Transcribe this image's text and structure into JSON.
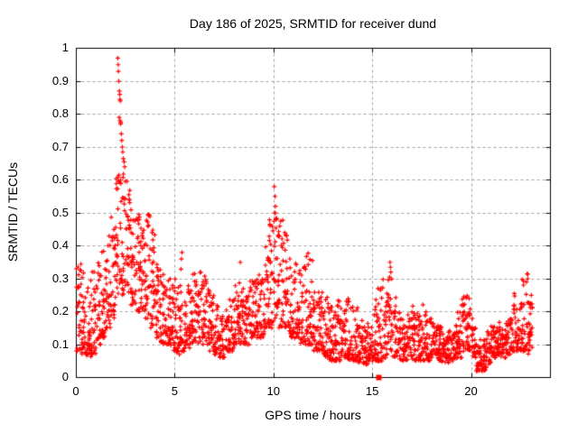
{
  "window": {
    "background": "#ffffff"
  },
  "chart_data": {
    "type": "scatter",
    "title": "Day 186 of 2025, SRMTID for receiver dund",
    "xlabel": "GPS time / hours",
    "ylabel": "SRMTID / TECUs",
    "xlim": [
      0,
      24
    ],
    "ylim": [
      0,
      1
    ],
    "xticks": [
      0,
      5,
      10,
      15,
      20
    ],
    "yticks": [
      0,
      0.1,
      0.2,
      0.3,
      0.4,
      0.5,
      0.6,
      0.7,
      0.8,
      0.9,
      1
    ],
    "grid": true,
    "grid_style": "dashed",
    "grid_color": "#a0a0a0",
    "axis_color": "#000000",
    "legend": "none",
    "series_name": "SRMTID",
    "marker": "plus",
    "marker_color": "#ff0000",
    "marker_size_px": 5,
    "seed": 186,
    "envelope_bins": [
      [
        0.0,
        0.25,
        0.08,
        0.35,
        28,
        1.5
      ],
      [
        0.25,
        0.5,
        0.07,
        0.32,
        28,
        1.5
      ],
      [
        0.5,
        0.75,
        0.06,
        0.3,
        28,
        1.5
      ],
      [
        0.75,
        1.0,
        0.07,
        0.33,
        28,
        1.5
      ],
      [
        1.0,
        1.25,
        0.1,
        0.38,
        28,
        1.5
      ],
      [
        1.25,
        1.5,
        0.12,
        0.42,
        28,
        1.5
      ],
      [
        1.5,
        1.75,
        0.15,
        0.43,
        28,
        1.4
      ],
      [
        1.75,
        2.0,
        0.18,
        0.5,
        28,
        1.4
      ],
      [
        2.0,
        2.25,
        0.25,
        0.62,
        30,
        1.3
      ],
      [
        2.25,
        2.5,
        0.25,
        0.63,
        30,
        1.3
      ],
      [
        2.5,
        2.75,
        0.25,
        0.6,
        28,
        1.4
      ],
      [
        2.75,
        3.0,
        0.22,
        0.52,
        28,
        1.4
      ],
      [
        3.0,
        3.25,
        0.2,
        0.5,
        28,
        1.4
      ],
      [
        3.25,
        3.5,
        0.2,
        0.47,
        28,
        1.4
      ],
      [
        3.5,
        3.75,
        0.18,
        0.5,
        28,
        1.3
      ],
      [
        3.75,
        4.0,
        0.15,
        0.45,
        28,
        1.4
      ],
      [
        4.0,
        4.25,
        0.12,
        0.35,
        28,
        1.5
      ],
      [
        4.25,
        4.5,
        0.1,
        0.32,
        28,
        1.5
      ],
      [
        4.5,
        4.75,
        0.1,
        0.3,
        28,
        1.5
      ],
      [
        4.75,
        5.0,
        0.08,
        0.28,
        28,
        1.5
      ],
      [
        5.0,
        5.25,
        0.07,
        0.3,
        26,
        1.6
      ],
      [
        5.25,
        5.5,
        0.08,
        0.36,
        26,
        1.7
      ],
      [
        5.5,
        5.75,
        0.08,
        0.28,
        26,
        1.6
      ],
      [
        5.75,
        6.0,
        0.1,
        0.33,
        26,
        1.6
      ],
      [
        6.0,
        6.25,
        0.1,
        0.33,
        26,
        1.6
      ],
      [
        6.25,
        6.5,
        0.1,
        0.32,
        26,
        1.6
      ],
      [
        6.5,
        6.75,
        0.1,
        0.3,
        26,
        1.6
      ],
      [
        6.75,
        7.0,
        0.08,
        0.25,
        26,
        1.6
      ],
      [
        7.0,
        7.25,
        0.07,
        0.22,
        26,
        1.6
      ],
      [
        7.25,
        7.5,
        0.06,
        0.2,
        26,
        1.6
      ],
      [
        7.5,
        7.75,
        0.08,
        0.22,
        26,
        1.6
      ],
      [
        7.75,
        8.0,
        0.08,
        0.25,
        26,
        1.6
      ],
      [
        8.0,
        8.25,
        0.1,
        0.28,
        26,
        1.6
      ],
      [
        8.25,
        8.5,
        0.1,
        0.3,
        26,
        1.6
      ],
      [
        8.5,
        8.75,
        0.1,
        0.28,
        26,
        1.6
      ],
      [
        8.75,
        9.0,
        0.12,
        0.3,
        26,
        1.5
      ],
      [
        9.0,
        9.25,
        0.12,
        0.3,
        26,
        1.5
      ],
      [
        9.25,
        9.5,
        0.12,
        0.32,
        26,
        1.5
      ],
      [
        9.5,
        9.75,
        0.15,
        0.4,
        26,
        1.5
      ],
      [
        9.75,
        10.0,
        0.15,
        0.48,
        26,
        1.6
      ],
      [
        10.0,
        10.25,
        0.18,
        0.5,
        28,
        1.5
      ],
      [
        10.25,
        10.5,
        0.15,
        0.48,
        26,
        1.6
      ],
      [
        10.5,
        10.75,
        0.15,
        0.45,
        26,
        1.6
      ],
      [
        10.75,
        11.0,
        0.12,
        0.38,
        26,
        1.6
      ],
      [
        11.0,
        11.25,
        0.12,
        0.35,
        26,
        1.6
      ],
      [
        11.25,
        11.5,
        0.1,
        0.38,
        26,
        1.7
      ],
      [
        11.5,
        11.75,
        0.1,
        0.4,
        26,
        1.7
      ],
      [
        11.75,
        12.0,
        0.1,
        0.37,
        26,
        1.7
      ],
      [
        12.0,
        12.25,
        0.08,
        0.3,
        26,
        1.7
      ],
      [
        12.25,
        12.5,
        0.08,
        0.26,
        26,
        1.7
      ],
      [
        12.5,
        12.75,
        0.06,
        0.25,
        26,
        1.7
      ],
      [
        12.75,
        13.0,
        0.05,
        0.22,
        26,
        1.7
      ],
      [
        13.0,
        13.25,
        0.05,
        0.22,
        26,
        1.7
      ],
      [
        13.25,
        13.5,
        0.05,
        0.25,
        26,
        1.8
      ],
      [
        13.5,
        13.75,
        0.06,
        0.25,
        26,
        1.8
      ],
      [
        13.75,
        14.0,
        0.05,
        0.26,
        26,
        1.8
      ],
      [
        14.0,
        14.25,
        0.05,
        0.22,
        26,
        1.8
      ],
      [
        14.25,
        14.5,
        0.04,
        0.18,
        26,
        1.6
      ],
      [
        14.5,
        14.75,
        0.04,
        0.16,
        26,
        1.6
      ],
      [
        14.75,
        15.0,
        0.05,
        0.18,
        26,
        1.6
      ],
      [
        15.0,
        15.25,
        0.05,
        0.25,
        26,
        1.8
      ],
      [
        15.25,
        15.5,
        0.05,
        0.3,
        26,
        1.8
      ],
      [
        15.5,
        15.75,
        0.06,
        0.3,
        26,
        1.8
      ],
      [
        15.75,
        16.0,
        0.08,
        0.3,
        26,
        1.8
      ],
      [
        16.0,
        16.25,
        0.06,
        0.25,
        26,
        1.8
      ],
      [
        16.25,
        16.5,
        0.05,
        0.2,
        26,
        1.7
      ],
      [
        16.5,
        16.75,
        0.05,
        0.18,
        26,
        1.6
      ],
      [
        16.75,
        17.0,
        0.05,
        0.2,
        26,
        1.7
      ],
      [
        17.0,
        17.25,
        0.05,
        0.22,
        26,
        1.7
      ],
      [
        17.25,
        17.5,
        0.05,
        0.2,
        26,
        1.7
      ],
      [
        17.5,
        17.75,
        0.05,
        0.23,
        26,
        1.7
      ],
      [
        17.75,
        18.0,
        0.05,
        0.2,
        26,
        1.7
      ],
      [
        18.0,
        18.25,
        0.06,
        0.17,
        26,
        1.5
      ],
      [
        18.25,
        18.5,
        0.05,
        0.16,
        26,
        1.5
      ],
      [
        18.5,
        18.75,
        0.04,
        0.15,
        26,
        1.5
      ],
      [
        18.75,
        19.0,
        0.04,
        0.15,
        26,
        1.5
      ],
      [
        19.0,
        19.25,
        0.05,
        0.16,
        26,
        1.5
      ],
      [
        19.25,
        19.5,
        0.06,
        0.2,
        26,
        1.6
      ],
      [
        19.5,
        19.75,
        0.08,
        0.25,
        26,
        1.5
      ],
      [
        19.75,
        20.0,
        0.08,
        0.26,
        26,
        1.6
      ],
      [
        20.0,
        20.25,
        0.06,
        0.18,
        26,
        1.6
      ],
      [
        20.25,
        20.5,
        0.02,
        0.12,
        26,
        1.5
      ],
      [
        20.5,
        20.75,
        0.02,
        0.12,
        26,
        1.5
      ],
      [
        20.75,
        21.0,
        0.04,
        0.14,
        26,
        1.5
      ],
      [
        21.0,
        21.25,
        0.06,
        0.16,
        26,
        1.5
      ],
      [
        21.25,
        21.5,
        0.07,
        0.18,
        26,
        1.5
      ],
      [
        21.5,
        21.75,
        0.06,
        0.16,
        26,
        1.5
      ],
      [
        21.75,
        22.0,
        0.07,
        0.2,
        26,
        1.6
      ],
      [
        22.0,
        22.25,
        0.08,
        0.27,
        26,
        1.7
      ],
      [
        22.25,
        22.5,
        0.08,
        0.22,
        26,
        1.6
      ],
      [
        22.5,
        22.75,
        0.08,
        0.3,
        26,
        1.8
      ],
      [
        22.75,
        23.0,
        0.07,
        0.32,
        26,
        1.7
      ],
      [
        23.0,
        23.1,
        0.08,
        0.25,
        10,
        1.5
      ]
    ],
    "outlier_points": [
      [
        2.1,
        0.97
      ],
      [
        2.12,
        0.95
      ],
      [
        2.13,
        0.93
      ],
      [
        2.15,
        0.9
      ],
      [
        2.18,
        0.87
      ],
      [
        2.2,
        0.86
      ],
      [
        2.21,
        0.845
      ],
      [
        2.23,
        0.84
      ],
      [
        2.17,
        0.79
      ],
      [
        2.22,
        0.78
      ],
      [
        2.25,
        0.775
      ],
      [
        2.24,
        0.77
      ],
      [
        2.28,
        0.74
      ],
      [
        2.3,
        0.72
      ],
      [
        2.33,
        0.7
      ],
      [
        2.35,
        0.685
      ],
      [
        2.38,
        0.665
      ],
      [
        2.42,
        0.655
      ],
      [
        2.45,
        0.64
      ],
      [
        10.02,
        0.58
      ],
      [
        10.06,
        0.55
      ],
      [
        10.08,
        0.52
      ],
      [
        10.04,
        0.5
      ],
      [
        10.12,
        0.48
      ],
      [
        10.3,
        0.46
      ],
      [
        10.55,
        0.44
      ],
      [
        8.3,
        0.35
      ],
      [
        15.88,
        0.35
      ],
      [
        15.9,
        0.335
      ],
      [
        15.92,
        0.32
      ],
      [
        15.86,
        0.305
      ],
      [
        5.35,
        0.38
      ],
      [
        5.32,
        0.36
      ],
      [
        22.82,
        0.315
      ],
      [
        22.85,
        0.3
      ],
      [
        22.78,
        0.29
      ]
    ],
    "special_points": [
      {
        "x": 15.3,
        "y": 0.0,
        "marker": "filled-square",
        "color": "#ff0000"
      }
    ]
  }
}
